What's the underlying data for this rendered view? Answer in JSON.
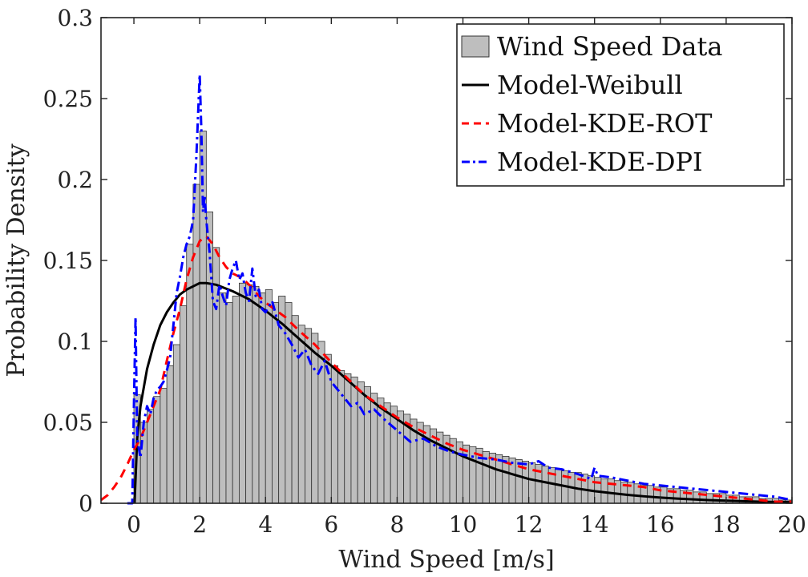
{
  "chart_data": {
    "type": "histogram",
    "xlabel": "Wind Speed [m/s]",
    "ylabel": "Probability Density",
    "xlim": [
      -1,
      20
    ],
    "ylim": [
      0,
      0.3
    ],
    "xticks": [
      "0",
      "2",
      "4",
      "6",
      "8",
      "10",
      "12",
      "14",
      "16",
      "18",
      "20"
    ],
    "yticks": [
      "0",
      "0.05",
      "0.1",
      "0.15",
      "0.2",
      "0.25",
      "0.3"
    ],
    "legend_position": "top-right",
    "bar_color": "#bebebe",
    "legend": [
      {
        "name": "Wind Speed Data",
        "style": "bar",
        "color": "#bebebe"
      },
      {
        "name": "Model-Weibull",
        "style": "solid",
        "color": "#000000"
      },
      {
        "name": "Model-KDE-ROT",
        "style": "dashed",
        "color": "#ff0000"
      },
      {
        "name": "Model-KDE-DPI",
        "style": "dashdot",
        "color": "#0000ff"
      }
    ],
    "histogram": {
      "bin_width": 0.2,
      "bin_start": 0,
      "densities": [
        0.067,
        0.05,
        0.058,
        0.066,
        0.071,
        0.085,
        0.098,
        0.122,
        0.16,
        0.197,
        0.23,
        0.18,
        0.158,
        0.13,
        0.124,
        0.128,
        0.136,
        0.135,
        0.134,
        0.13,
        0.132,
        0.124,
        0.128,
        0.124,
        0.116,
        0.11,
        0.108,
        0.105,
        0.1,
        0.092,
        0.085,
        0.082,
        0.08,
        0.078,
        0.075,
        0.072,
        0.068,
        0.065,
        0.062,
        0.06,
        0.057,
        0.055,
        0.052,
        0.05,
        0.048,
        0.046,
        0.044,
        0.042,
        0.04,
        0.038,
        0.036,
        0.035,
        0.034,
        0.032,
        0.031,
        0.03,
        0.029,
        0.028,
        0.027,
        0.026,
        0.025,
        0.024,
        0.023,
        0.022,
        0.021,
        0.02,
        0.019,
        0.019,
        0.018,
        0.017,
        0.016,
        0.015,
        0.015,
        0.014,
        0.013,
        0.013,
        0.012,
        0.011,
        0.011,
        0.01,
        0.01,
        0.009,
        0.009,
        0.008,
        0.008,
        0.007,
        0.007,
        0.006,
        0.006,
        0.006,
        0.005,
        0.005,
        0.004,
        0.004,
        0.004,
        0.003,
        0.003,
        0.003,
        0.002,
        0.002
      ]
    },
    "series": [
      {
        "name": "Model-Weibull",
        "color": "#000000",
        "style": "solid",
        "x": [
          0.02,
          0.1,
          0.2,
          0.4,
          0.6,
          0.8,
          1.0,
          1.2,
          1.4,
          1.6,
          1.8,
          2.0,
          2.2,
          2.5,
          3.0,
          3.5,
          4.0,
          4.5,
          5.0,
          5.5,
          6.0,
          6.5,
          7.0,
          7.5,
          8.0,
          8.5,
          9.0,
          9.5,
          10.0,
          10.5,
          11.0,
          11.5,
          12.0,
          12.5,
          13.0,
          13.5,
          14.0,
          14.5,
          15.0,
          15.5,
          16.0,
          16.5,
          17.0,
          17.5,
          18.0,
          18.5,
          19.0,
          19.5,
          20.0
        ],
        "y": [
          0.0,
          0.04,
          0.06,
          0.083,
          0.098,
          0.11,
          0.118,
          0.124,
          0.129,
          0.132,
          0.134,
          0.136,
          0.136,
          0.135,
          0.131,
          0.126,
          0.119,
          0.111,
          0.102,
          0.093,
          0.085,
          0.076,
          0.067,
          0.059,
          0.052,
          0.045,
          0.039,
          0.034,
          0.029,
          0.025,
          0.021,
          0.018,
          0.015,
          0.013,
          0.011,
          0.009,
          0.0075,
          0.0063,
          0.0052,
          0.0043,
          0.0035,
          0.0029,
          0.0024,
          0.0019,
          0.0016,
          0.0013,
          0.001,
          0.0008,
          0.0007
        ]
      },
      {
        "name": "Model-KDE-ROT",
        "color": "#ff0000",
        "style": "dashed",
        "x": [
          -1.0,
          -0.8,
          -0.6,
          -0.4,
          -0.2,
          0.0,
          0.2,
          0.4,
          0.6,
          0.8,
          1.0,
          1.2,
          1.4,
          1.6,
          1.8,
          2.0,
          2.2,
          2.4,
          2.6,
          2.8,
          3.0,
          3.2,
          3.4,
          3.6,
          3.8,
          4.0,
          4.2,
          4.4,
          4.6,
          4.8,
          5.0,
          5.5,
          6.0,
          6.5,
          7.0,
          7.5,
          8.0,
          8.5,
          9.0,
          9.5,
          10.0,
          10.5,
          11.0,
          11.5,
          12.0,
          12.5,
          13.0,
          13.5,
          14.0,
          14.5,
          15.0,
          15.5,
          16.0,
          16.5,
          17.0,
          17.5,
          18.0,
          18.5,
          19.0,
          19.5,
          20.0
        ],
        "y": [
          0.002,
          0.005,
          0.01,
          0.016,
          0.024,
          0.033,
          0.04,
          0.05,
          0.06,
          0.07,
          0.088,
          0.105,
          0.12,
          0.138,
          0.152,
          0.162,
          0.165,
          0.16,
          0.152,
          0.146,
          0.142,
          0.14,
          0.137,
          0.133,
          0.128,
          0.124,
          0.121,
          0.118,
          0.115,
          0.111,
          0.107,
          0.098,
          0.087,
          0.077,
          0.067,
          0.06,
          0.053,
          0.047,
          0.042,
          0.037,
          0.033,
          0.03,
          0.027,
          0.024,
          0.021,
          0.019,
          0.017,
          0.015,
          0.013,
          0.012,
          0.011,
          0.01,
          0.008,
          0.007,
          0.006,
          0.005,
          0.004,
          0.003,
          0.002,
          0.001,
          0.001
        ]
      },
      {
        "name": "Model-KDE-DPI",
        "color": "#0000ff",
        "style": "dashdot",
        "x": [
          -0.2,
          -0.05,
          0.0,
          0.05,
          0.1,
          0.2,
          0.3,
          0.4,
          0.5,
          0.6,
          0.7,
          0.8,
          0.9,
          1.0,
          1.1,
          1.2,
          1.3,
          1.4,
          1.5,
          1.6,
          1.7,
          1.8,
          1.9,
          2.0,
          2.05,
          2.1,
          2.15,
          2.2,
          2.3,
          2.4,
          2.5,
          2.6,
          2.7,
          2.8,
          2.9,
          3.0,
          3.1,
          3.2,
          3.3,
          3.4,
          3.5,
          3.6,
          3.7,
          3.8,
          3.9,
          4.0,
          4.2,
          4.4,
          4.6,
          4.8,
          5.0,
          5.2,
          5.4,
          5.6,
          5.8,
          6.0,
          6.2,
          6.4,
          6.6,
          6.8,
          7.0,
          7.3,
          7.6,
          8.0,
          8.4,
          8.8,
          9.2,
          9.6,
          10.0,
          10.5,
          11.0,
          11.5,
          12.0,
          12.3,
          12.6,
          13.0,
          13.5,
          13.9,
          14.0,
          14.1,
          14.5,
          15.0,
          15.5,
          16.0,
          16.5,
          17.0,
          17.5,
          18.0,
          18.5,
          19.0,
          19.5,
          20.0
        ],
        "y": [
          0.0,
          0.0,
          0.06,
          0.115,
          0.04,
          0.028,
          0.05,
          0.06,
          0.055,
          0.065,
          0.07,
          0.072,
          0.075,
          0.082,
          0.09,
          0.11,
          0.13,
          0.14,
          0.152,
          0.16,
          0.165,
          0.175,
          0.215,
          0.265,
          0.23,
          0.18,
          0.19,
          0.175,
          0.155,
          0.125,
          0.12,
          0.135,
          0.128,
          0.122,
          0.138,
          0.145,
          0.15,
          0.138,
          0.142,
          0.13,
          0.125,
          0.145,
          0.128,
          0.132,
          0.12,
          0.118,
          0.125,
          0.11,
          0.105,
          0.098,
          0.09,
          0.095,
          0.085,
          0.08,
          0.088,
          0.075,
          0.07,
          0.065,
          0.06,
          0.062,
          0.055,
          0.058,
          0.052,
          0.045,
          0.038,
          0.04,
          0.035,
          0.032,
          0.03,
          0.028,
          0.027,
          0.025,
          0.024,
          0.026,
          0.022,
          0.021,
          0.018,
          0.015,
          0.022,
          0.017,
          0.016,
          0.014,
          0.012,
          0.011,
          0.01,
          0.009,
          0.008,
          0.007,
          0.006,
          0.005,
          0.004,
          0.002
        ]
      }
    ]
  }
}
